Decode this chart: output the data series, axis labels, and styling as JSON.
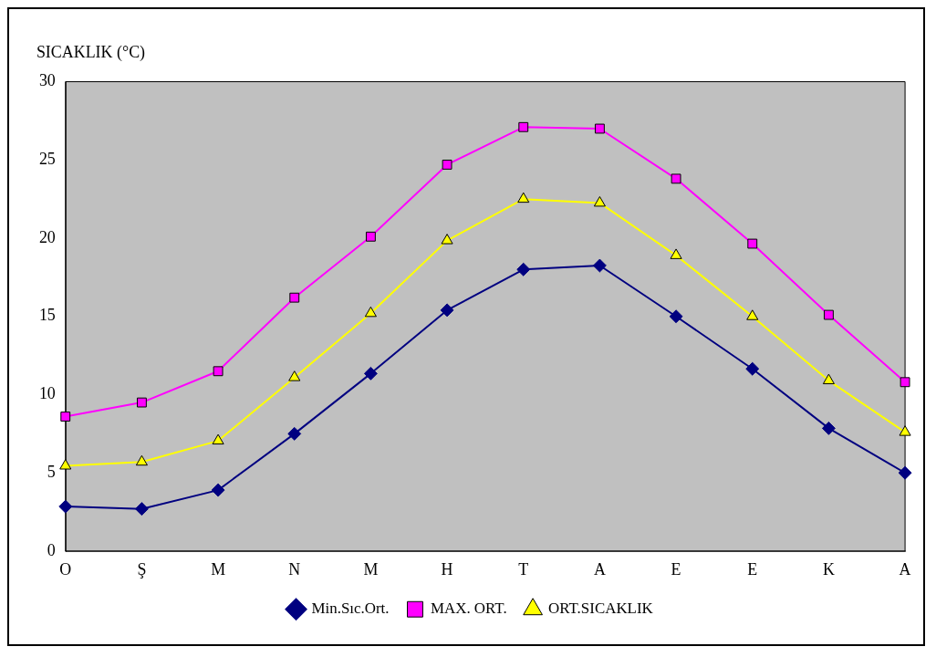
{
  "chart_data": {
    "type": "line",
    "ylabel": "SICAKLIK (°C)",
    "categories": [
      "O",
      "Ş",
      "M",
      "N",
      "M",
      "H",
      "T",
      "A",
      "E",
      "E",
      "K",
      "A"
    ],
    "series": [
      {
        "name": "Min.Sıc.Ort.",
        "color": "#000080",
        "marker": "diamond",
        "values": [
          2.85,
          2.7,
          3.9,
          7.5,
          11.35,
          15.4,
          18.0,
          18.25,
          15.0,
          11.65,
          7.85,
          5.0
        ]
      },
      {
        "name": "MAX. ORT.",
        "color": "#ff00ff",
        "marker": "square",
        "values": [
          8.6,
          9.5,
          11.5,
          16.2,
          20.1,
          24.7,
          27.1,
          27.0,
          23.8,
          19.65,
          15.1,
          10.8
        ]
      },
      {
        "name": "ORT.SICAKLIK",
        "color": "#ffff00",
        "marker": "triangle",
        "values": [
          5.45,
          5.7,
          7.05,
          11.1,
          15.2,
          19.85,
          22.5,
          22.25,
          18.9,
          15.0,
          10.9,
          7.6
        ]
      }
    ],
    "ylim": [
      0,
      30
    ],
    "yticks": [
      0,
      5,
      10,
      15,
      20,
      25,
      30
    ],
    "grid": false,
    "legend": "bottom",
    "line_style": "solid"
  }
}
